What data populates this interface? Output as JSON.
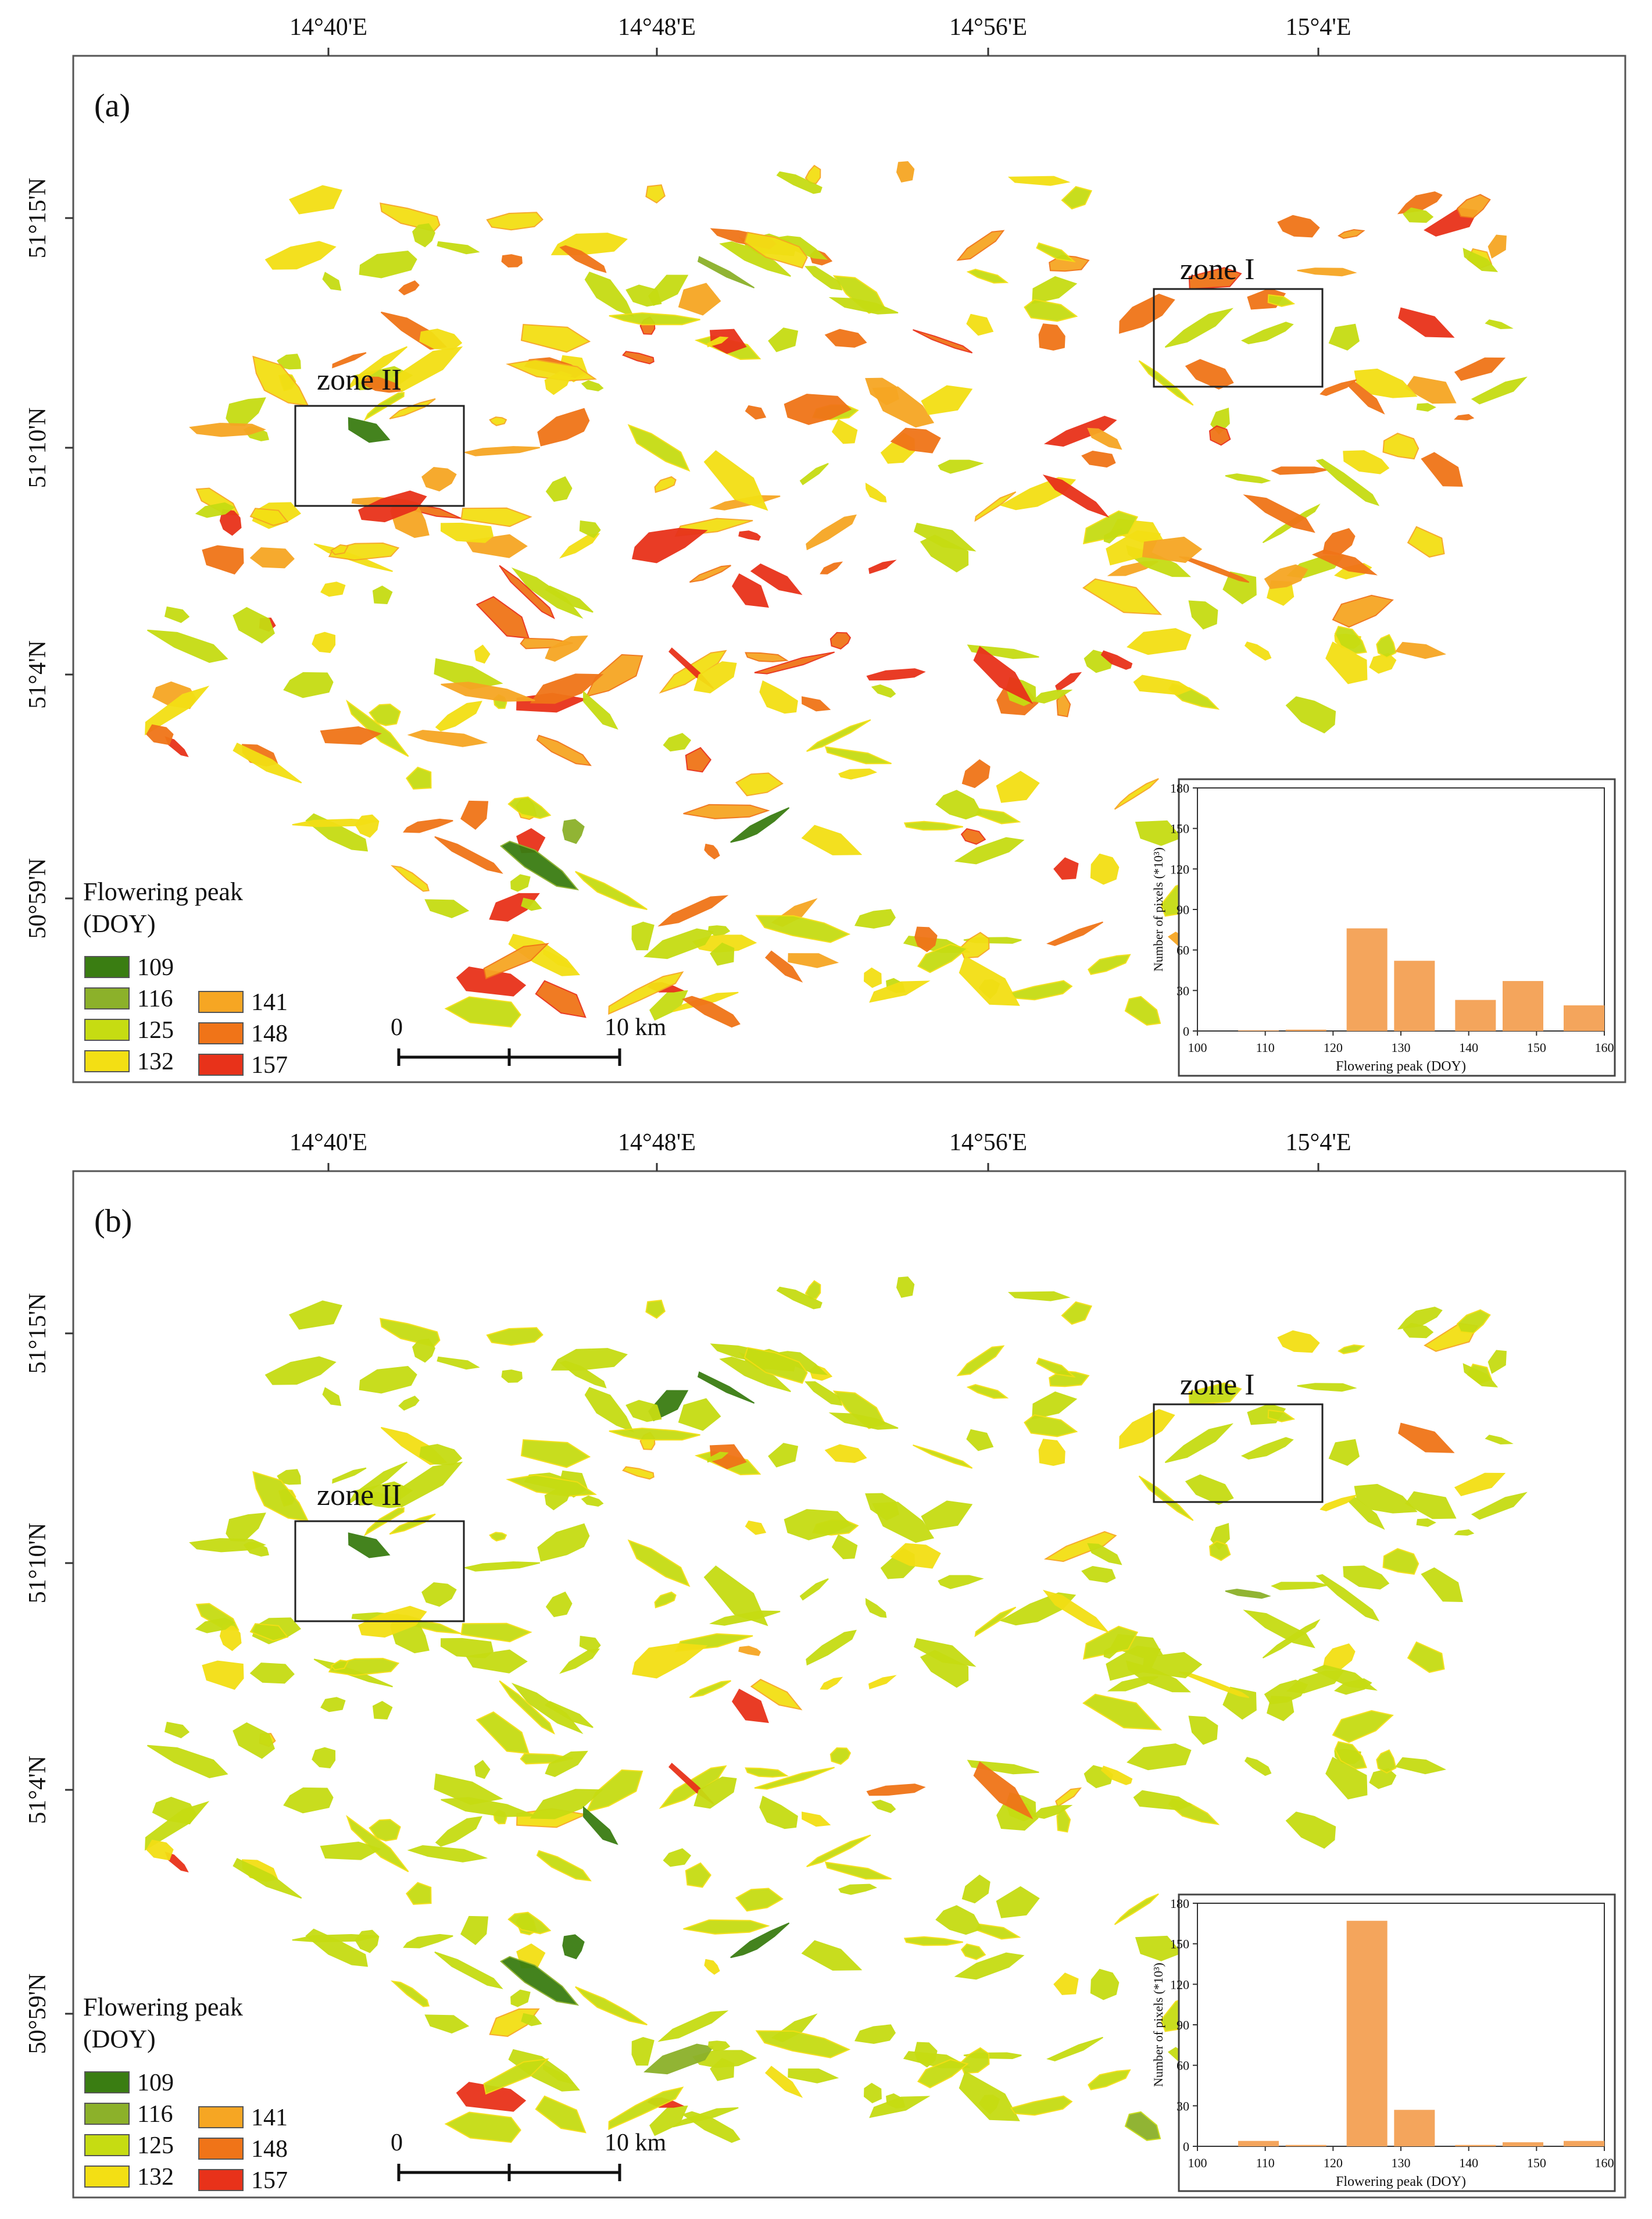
{
  "colors": {
    "doy_109": "#3a7d12",
    "doy_116": "#8cb12a",
    "doy_125": "#c6dc12",
    "doy_132": "#f3df14",
    "doy_141": "#f6a623",
    "doy_148": "#f07418",
    "doy_157": "#e8321a",
    "histogram_bar": "#f4a55c",
    "frame": "#555555"
  },
  "longitude_labels": [
    "14°40'E",
    "14°48'E",
    "14°56'E",
    "15°4'E"
  ],
  "latitude_labels": [
    "51°15'N",
    "51°10'N",
    "51°4'N",
    "50°59'N"
  ],
  "legend": {
    "title_line1": "Flowering peak",
    "title_line2": "(DOY)",
    "left_items": [
      "109",
      "116",
      "125",
      "132"
    ],
    "right_items": [
      "141",
      "148",
      "157"
    ]
  },
  "scale_bar": {
    "zero_label": "0",
    "end_label": "10 km"
  },
  "zone_labels": {
    "zone1": "zone I",
    "zone2": "zone II"
  },
  "panels": [
    {
      "label": "(a)",
      "chart_data": {
        "type": "bar",
        "title": "",
        "xlabel": "Flowering peak (DOY)",
        "ylabel": "Number of pixels (*10³)",
        "xlim": [
          100,
          160
        ],
        "ylim": [
          0,
          180
        ],
        "xticks": [
          100,
          110,
          120,
          130,
          140,
          150,
          160
        ],
        "yticks": [
          0,
          30,
          60,
          90,
          120,
          150,
          180
        ],
        "x": [
          109,
          116,
          125,
          132,
          141,
          148,
          157
        ],
        "values": [
          0.5,
          1,
          76,
          52,
          23,
          37,
          19
        ]
      }
    },
    {
      "label": "(b)",
      "chart_data": {
        "type": "bar",
        "title": "",
        "xlabel": "Flowering peak (DOY)",
        "ylabel": "Number of pixels (*10³)",
        "xlim": [
          100,
          160
        ],
        "ylim": [
          0,
          180
        ],
        "xticks": [
          100,
          110,
          120,
          130,
          140,
          150,
          160
        ],
        "yticks": [
          0,
          30,
          60,
          90,
          120,
          150,
          180
        ],
        "x": [
          109,
          116,
          125,
          132,
          141,
          148,
          157
        ],
        "values": [
          4,
          1,
          167,
          27,
          1,
          3,
          4
        ]
      }
    }
  ]
}
